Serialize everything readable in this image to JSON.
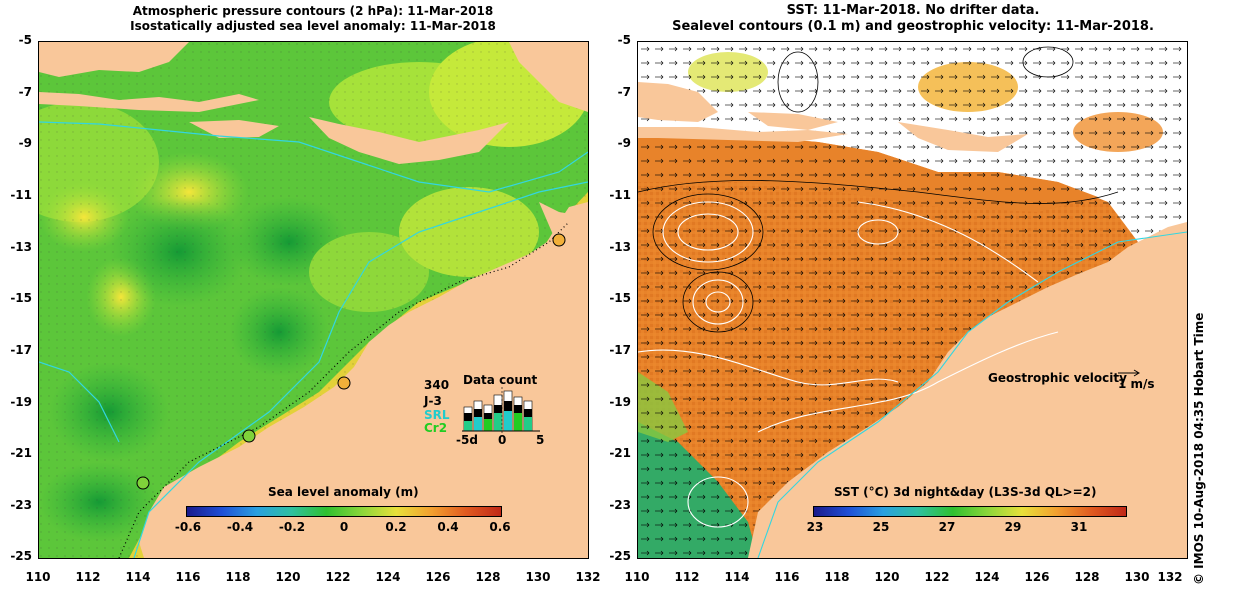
{
  "left_panel": {
    "title_line1": "Atmospheric pressure contours (2 hPa): 11-Mar-2018",
    "title_line2": "Isostatically adjusted sea level anomaly: 11-Mar-2018",
    "yticks": [
      "-5",
      "-7",
      "-9",
      "-11",
      "-13",
      "-15",
      "-17",
      "-19",
      "-21",
      "-23",
      "-25"
    ],
    "xticks": [
      "110",
      "112",
      "114",
      "116",
      "118",
      "120",
      "122",
      "124",
      "126",
      "128",
      "130",
      "132"
    ],
    "colorbar": {
      "label": "Sea level anomaly (m)",
      "ticks": [
        "-0.6",
        "-0.4",
        "-0.2",
        "0",
        "0.2",
        "0.4",
        "0.6"
      ]
    },
    "data_count": {
      "title": "Data count",
      "satellites": [
        {
          "name": "340",
          "color": "#000000"
        },
        {
          "name": "J-3",
          "color": "#000000"
        },
        {
          "name": "SRL",
          "color": "#22cccc"
        },
        {
          "name": "Cr2",
          "color": "#22cc22"
        }
      ],
      "axis_ticks": [
        "-5d",
        "0",
        "5"
      ]
    }
  },
  "right_panel": {
    "title_line1": "SST: 11-Mar-2018. No drifter data.",
    "title_line2": "Sealevel contours (0.1 m) and geostrophic velocity: 11-Mar-2018.",
    "yticks": [
      "-5",
      "-7",
      "-9",
      "-11",
      "-13",
      "-15",
      "-17",
      "-19",
      "-21",
      "-23",
      "-25"
    ],
    "xticks": [
      "110",
      "112",
      "114",
      "116",
      "118",
      "120",
      "122",
      "124",
      "126",
      "128",
      "130",
      "132"
    ],
    "velocity_label": "Geostrophic velocity",
    "velocity_scale": "1 m/s",
    "colorbar": {
      "label": "SST (°C) 3d night&day (L3S-3d QL>=2)",
      "ticks": [
        "23",
        "25",
        "27",
        "29",
        "31"
      ]
    }
  },
  "credit": "© IMOS 10-Aug-2018 04:35 Hobart Time",
  "colors": {
    "land": "#f9c79a",
    "sla_low": "#1a9e2a",
    "sla_mid": "#7fd23a",
    "sla_high": "#f0e030",
    "sst_warm": "#e07a20",
    "sst_cool": "#33aa66",
    "coast_line": "#33d6e0"
  }
}
